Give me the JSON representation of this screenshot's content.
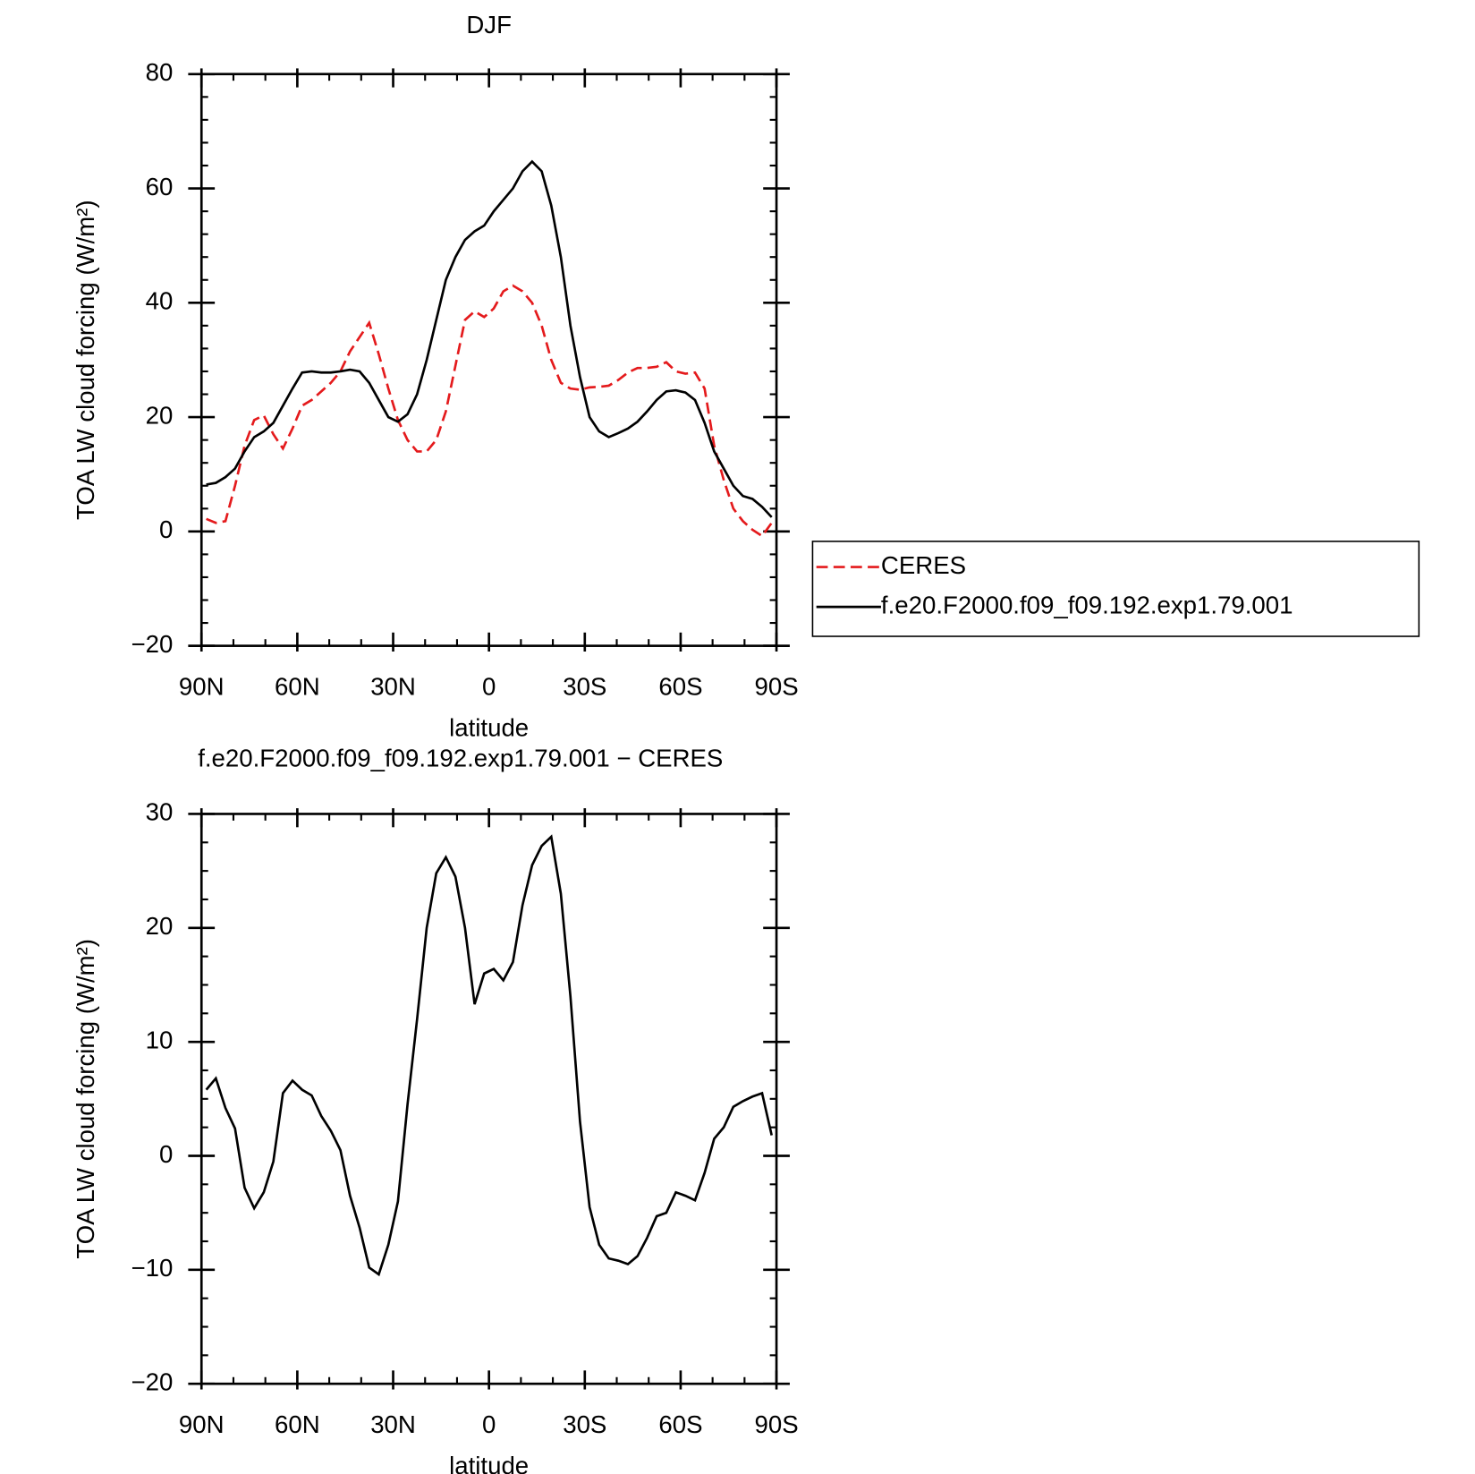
{
  "chart_data": [
    {
      "type": "line",
      "title": "DJF",
      "xlabel": "latitude",
      "ylabel": "TOA LW cloud forcing (W/m²)",
      "x": [
        88.5,
        85.5,
        82.5,
        79.5,
        76.5,
        73.5,
        70.5,
        67.5,
        64.5,
        61.5,
        58.5,
        55.5,
        52.5,
        49.5,
        46.5,
        43.5,
        40.5,
        37.5,
        34.5,
        31.5,
        28.5,
        25.5,
        22.5,
        19.5,
        16.5,
        13.5,
        10.5,
        7.5,
        4.5,
        1.5,
        -1.5,
        -4.5,
        -7.5,
        -10.5,
        -13.5,
        -16.5,
        -19.5,
        -22.5,
        -25.5,
        -28.5,
        -31.5,
        -34.5,
        -37.5,
        -40.5,
        -43.5,
        -46.5,
        -49.5,
        -52.5,
        -55.5,
        -58.5,
        -61.5,
        -64.5,
        -67.5,
        -70.5,
        -73.5,
        -76.5,
        -79.5,
        -82.5,
        -85.5,
        -88.5
      ],
      "series": [
        {
          "name": "CERES",
          "color": "#e41a1c",
          "dash": true,
          "values": [
            2.2,
            1.5,
            1.8,
            8,
            15,
            19.5,
            20.3,
            17,
            14.5,
            18,
            22,
            23,
            24.5,
            26,
            28,
            31.5,
            34,
            36.5,
            31,
            25,
            19.5,
            16,
            14,
            14,
            16,
            21,
            29,
            37,
            38.5,
            37.5,
            39,
            42,
            43,
            42,
            40,
            36,
            30,
            26,
            25,
            24.8,
            25.2,
            25.3,
            25.5,
            26.5,
            27.8,
            28.6,
            28.6,
            28.8,
            29.6,
            28,
            27.6,
            27.8,
            25,
            15,
            9,
            4,
            1.8,
            0.3,
            -0.8,
            1.5
          ]
        },
        {
          "name": "f.e20.F2000.f09_f09.192.exp1.79.001",
          "color": "#000000",
          "dash": false,
          "values": [
            8.2,
            8.5,
            9.5,
            11,
            14,
            16.5,
            17.5,
            19,
            22,
            25,
            27.8,
            28,
            27.8,
            27.8,
            28,
            28.3,
            28,
            26,
            23,
            20,
            19.2,
            20.5,
            24,
            30,
            37,
            44,
            48,
            51,
            52.5,
            53.5,
            56,
            58,
            60,
            63,
            64.7,
            63,
            57,
            48,
            36,
            27,
            20,
            17.5,
            16.5,
            17.2,
            18,
            19.2,
            21,
            23,
            24.5,
            24.7,
            24.3,
            23,
            19,
            14,
            11,
            8,
            6.2,
            5.7,
            4.3,
            2.5
          ]
        }
      ],
      "xlim": [
        90,
        -90
      ],
      "xticks": [
        {
          "value": 90,
          "label": "90N"
        },
        {
          "value": 60,
          "label": "60N"
        },
        {
          "value": 30,
          "label": "30N"
        },
        0,
        {
          "value": -30,
          "label": "30S"
        },
        {
          "value": -60,
          "label": "60S"
        },
        {
          "value": -90,
          "label": "90S"
        }
      ],
      "ylim": [
        -20,
        80
      ],
      "yticks": [
        {
          "value": -20,
          "label": "−20"
        },
        0,
        20,
        40,
        60,
        80
      ]
    },
    {
      "type": "line",
      "title": "f.e20.F2000.f09_f09.192.exp1.79.001 − CERES",
      "xlabel": "latitude",
      "ylabel": "TOA LW cloud forcing (W/m²)",
      "x": [
        88.5,
        85.5,
        82.5,
        79.5,
        76.5,
        73.5,
        70.5,
        67.5,
        64.5,
        61.5,
        58.5,
        55.5,
        52.5,
        49.5,
        46.5,
        43.5,
        40.5,
        37.5,
        34.5,
        31.5,
        28.5,
        25.5,
        22.5,
        19.5,
        16.5,
        13.5,
        10.5,
        7.5,
        4.5,
        1.5,
        -1.5,
        -4.5,
        -7.5,
        -10.5,
        -13.5,
        -16.5,
        -19.5,
        -22.5,
        -25.5,
        -28.5,
        -31.5,
        -34.5,
        -37.5,
        -40.5,
        -43.5,
        -46.5,
        -49.5,
        -52.5,
        -55.5,
        -58.5,
        -61.5,
        -64.5,
        -67.5,
        -70.5,
        -73.5,
        -76.5,
        -79.5,
        -82.5,
        -85.5,
        -88.5
      ],
      "series": [
        {
          "color": "#000000",
          "dash": false,
          "values": [
            5.8,
            6.8,
            4.2,
            2.4,
            -2.8,
            -4.6,
            -3.2,
            -0.5,
            5.5,
            6.6,
            5.8,
            5.3,
            3.5,
            2.2,
            0.5,
            -3.5,
            -6.3,
            -9.8,
            -10.4,
            -7.8,
            -4,
            4.5,
            12,
            20,
            24.8,
            26.2,
            24.5,
            20,
            13.3,
            16,
            16.4,
            15.4,
            17,
            22,
            25.5,
            27.2,
            28,
            23,
            14,
            3,
            -4.5,
            -7.8,
            -9,
            -9.2,
            -9.5,
            -8.8,
            -7.2,
            -5.3,
            -5,
            -3.2,
            -3.5,
            -3.9,
            -1.5,
            1.5,
            2.5,
            4.3,
            4.8,
            5.2,
            5.5,
            1.8
          ]
        }
      ],
      "xlim": [
        90,
        -90
      ],
      "xticks": [
        {
          "value": 90,
          "label": "90N"
        },
        {
          "value": 60,
          "label": "60N"
        },
        {
          "value": 30,
          "label": "30N"
        },
        0,
        {
          "value": -30,
          "label": "30S"
        },
        {
          "value": -60,
          "label": "60S"
        },
        {
          "value": -90,
          "label": "90S"
        }
      ],
      "ylim": [
        -20,
        30
      ],
      "yticks": [
        {
          "value": -20,
          "label": "−20"
        },
        {
          "value": -10,
          "label": "−10"
        },
        0,
        10,
        20,
        30
      ]
    }
  ]
}
